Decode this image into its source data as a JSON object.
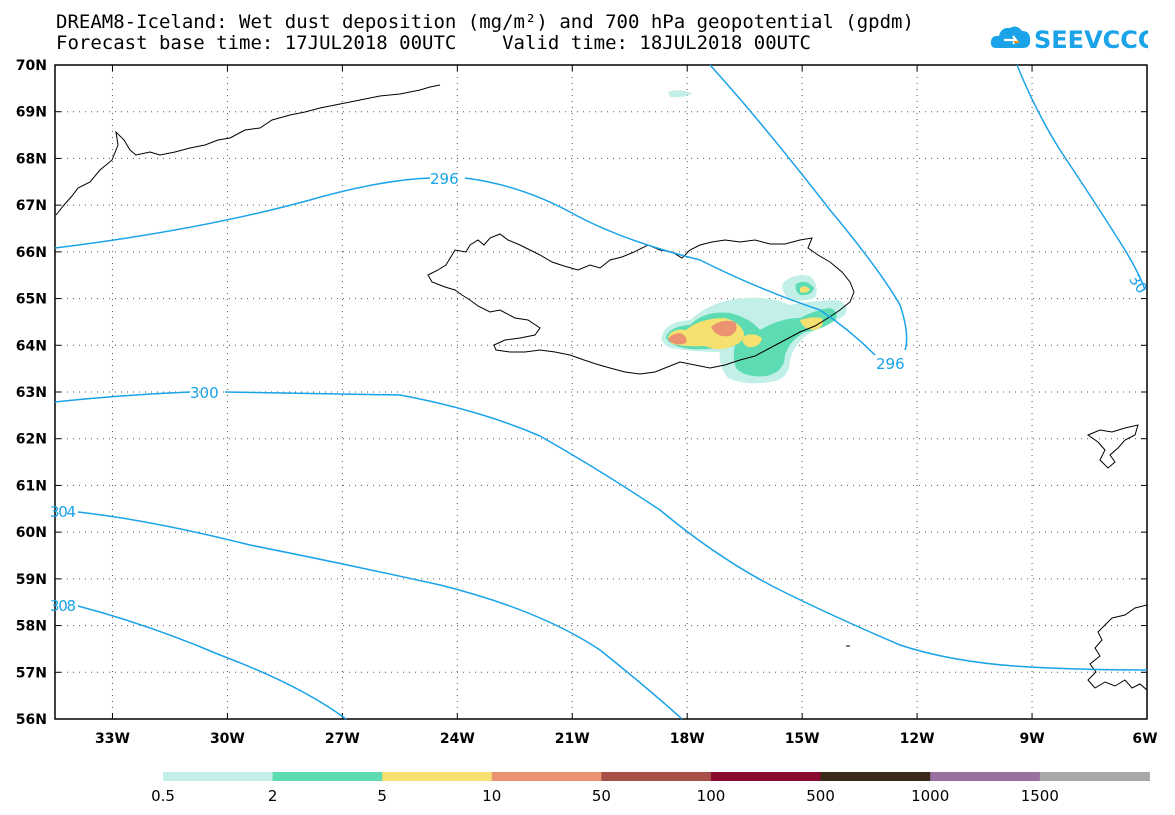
{
  "title": {
    "line1": "DREAM8-Iceland: Wet dust deposition (mg/m²) and 700 hPa geopotential (gpdm)",
    "line2": "Forecast base time: 17JUL2018 00UTC    Valid time: 18JUL2018 00UTC"
  },
  "logo": {
    "text": "SEEVCCC",
    "icon": "cloud-icon",
    "color": "#1aa3e8"
  },
  "map": {
    "lat_labels": [
      "70N",
      "69N",
      "68N",
      "67N",
      "66N",
      "65N",
      "64N",
      "63N",
      "62N",
      "61N",
      "60N",
      "59N",
      "58N",
      "57N",
      "56N"
    ],
    "lon_labels": [
      "33W",
      "30W",
      "27W",
      "24W",
      "21W",
      "18W",
      "15W",
      "12W",
      "9W",
      "6W"
    ],
    "lat_range": [
      56,
      70
    ],
    "lon_range": [
      -34.5,
      -6
    ],
    "grid": true,
    "contour_color": "#1aa3e8",
    "contour_labels": [
      "296",
      "296",
      "300",
      "304",
      "308",
      "30"
    ]
  },
  "legend": {
    "labels": [
      "0.5",
      "2",
      "5",
      "10",
      "50",
      "100",
      "500",
      "1000",
      "1500"
    ],
    "colors": [
      "#c2f0e8",
      "#5ddcb4",
      "#f5e070",
      "#eb9270",
      "#a85048",
      "#8a0a30",
      "#3a2a1a",
      "#9a70a0",
      "#a8a8a8"
    ]
  }
}
